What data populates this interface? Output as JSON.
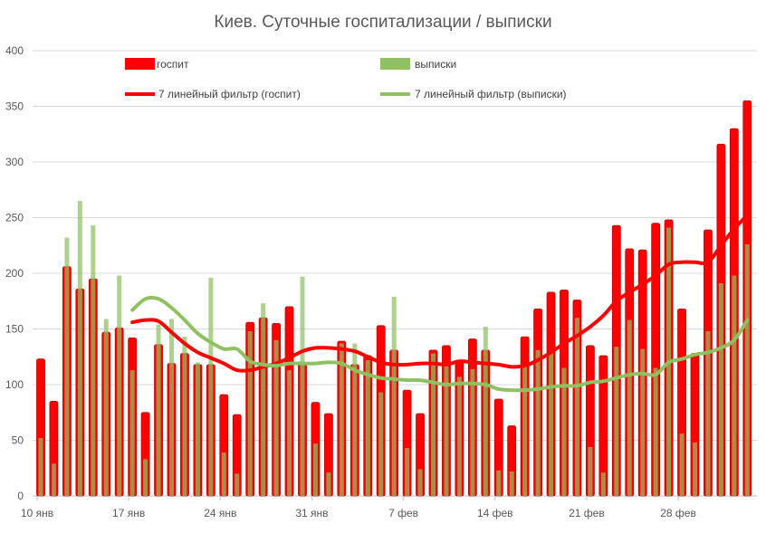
{
  "chart_data": {
    "type": "bar",
    "title": "Киев.  Суточные госпитализации / выписки",
    "xlabel": "",
    "ylabel": "",
    "ylim": [
      0,
      400
    ],
    "yticks": [
      0,
      50,
      100,
      150,
      200,
      250,
      300,
      350,
      400
    ],
    "grid": true,
    "legend_placement": "top",
    "x_start": "10 янв",
    "x_end": "5 мар",
    "xtick_labels": [
      "10 янв",
      "17 янв",
      "24 янв",
      "31 янв",
      "7 фев",
      "14 фев",
      "21 фев",
      "28 фев"
    ],
    "colors": {
      "hosp": "#ff0000",
      "hosp_edge": "#c00000",
      "disch": "#8fc163",
      "hosp_line": "#ff0000",
      "disch_line": "#8fc163",
      "grid": "#d9d9d9"
    },
    "series": [
      {
        "name": "госпит",
        "kind": "bar",
        "values": [
          123,
          85,
          206,
          186,
          195,
          147,
          151,
          142,
          75,
          136,
          119,
          128,
          118,
          118,
          91,
          73,
          156,
          160,
          155,
          170,
          120,
          84,
          74,
          139,
          118,
          126,
          153,
          131,
          95,
          74,
          131,
          135,
          122,
          141,
          131,
          87,
          63,
          143,
          168,
          183,
          185,
          176,
          135,
          126,
          243,
          222,
          221,
          245,
          248,
          168,
          128,
          239,
          316,
          330,
          355
        ]
      },
      {
        "name": "выписки",
        "kind": "bar",
        "values": [
          52,
          29,
          232,
          265,
          243,
          159,
          198,
          113,
          33,
          154,
          159,
          143,
          120,
          196,
          39,
          20,
          148,
          173,
          140,
          113,
          197,
          47,
          21,
          137,
          137,
          122,
          93,
          179,
          43,
          24,
          128,
          118,
          107,
          114,
          152,
          23,
          22,
          118,
          131,
          128,
          115,
          160,
          44,
          21,
          134,
          158,
          132,
          115,
          241,
          56,
          48,
          148,
          191,
          198,
          226
        ]
      },
      {
        "name": "7 линейный фильтр (госпит)",
        "kind": "line",
        "start_index": 7,
        "values": [
          156,
          158,
          157,
          147,
          137,
          129,
          124,
          119,
          113,
          113,
          116,
          119,
          124,
          130,
          133,
          133,
          132,
          130,
          125,
          120,
          118,
          118,
          119,
          119,
          118,
          121,
          120,
          119,
          118,
          116,
          117,
          122,
          129,
          137,
          144,
          152,
          162,
          175,
          183,
          190,
          198,
          208,
          210,
          210,
          210,
          225,
          240,
          252
        ]
      },
      {
        "name": "7 линейный фильтр (выписки)",
        "kind": "line",
        "start_index": 7,
        "values": [
          167,
          177,
          177,
          169,
          158,
          146,
          138,
          132,
          132,
          121,
          118,
          117,
          119,
          119,
          119,
          120,
          119,
          113,
          109,
          106,
          105,
          104,
          104,
          102,
          100,
          101,
          101,
          100,
          96,
          95,
          95,
          96,
          98,
          99,
          99,
          102,
          103,
          106,
          109,
          110,
          109,
          120,
          123,
          127,
          129,
          133,
          140,
          158
        ]
      }
    ]
  }
}
